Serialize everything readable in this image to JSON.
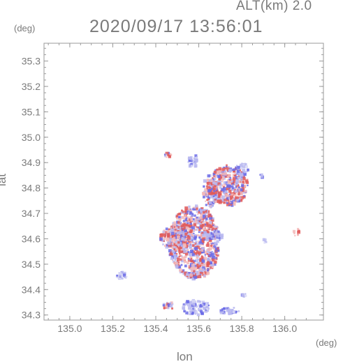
{
  "header": {
    "altitude_label": "ALT(km) 2.0",
    "datetime_label": "2020/09/17 13:56:01"
  },
  "chart_data": {
    "type": "heatmap",
    "title": "2020/09/17 13:56:01",
    "subtitle": "ALT(km) 2.0",
    "xlabel": "lon",
    "ylabel": "lat",
    "x_unit": "(deg)",
    "y_unit": "(deg)",
    "xlim": [
      134.88,
      136.18
    ],
    "ylim": [
      34.28,
      35.37
    ],
    "x_ticks": [
      135.0,
      135.2,
      135.4,
      135.6,
      135.8,
      136.0
    ],
    "x_tick_labels": [
      "135.0",
      "135.2",
      "135.4",
      "135.6",
      "135.8",
      "136.0"
    ],
    "y_ticks": [
      34.3,
      34.4,
      34.5,
      34.6,
      34.7,
      34.8,
      34.9,
      35.0,
      35.1,
      35.2,
      35.3
    ],
    "y_tick_labels": [
      "34.3",
      "34.4",
      "34.5",
      "34.6",
      "34.7",
      "34.8",
      "34.9",
      "35.0",
      "35.1",
      "35.2",
      "35.3"
    ],
    "grid": false,
    "colors": {
      "positive": "#e05a5a",
      "negative": "#6a6ae6",
      "frame": "#9a9a9a",
      "text": "#7a7a7a"
    },
    "echo_regions": [
      {
        "lon": [
          135.46,
          135.7
        ],
        "lat": [
          34.44,
          34.73
        ],
        "dominant": "mixed"
      },
      {
        "lon": [
          135.65,
          135.83
        ],
        "lat": [
          34.73,
          34.89
        ],
        "dominant": "mixed"
      },
      {
        "lon": [
          135.42,
          135.56
        ],
        "lat": [
          34.56,
          34.65
        ],
        "dominant": "mixed"
      },
      {
        "lon": [
          135.55,
          135.6
        ],
        "lat": [
          34.88,
          34.93
        ],
        "dominant": "negative"
      },
      {
        "lon": [
          135.62,
          135.68
        ],
        "lat": [
          34.72,
          34.85
        ],
        "dominant": "mixed"
      },
      {
        "lon": [
          135.77,
          135.83
        ],
        "lat": [
          34.85,
          34.9
        ],
        "dominant": "negative"
      },
      {
        "lon": [
          135.62,
          135.72
        ],
        "lat": [
          34.6,
          34.63
        ],
        "dominant": "negative"
      },
      {
        "lon": [
          135.52,
          135.65
        ],
        "lat": [
          34.3,
          34.36
        ],
        "dominant": "negative"
      },
      {
        "lon": [
          135.7,
          135.79
        ],
        "lat": [
          34.3,
          34.33
        ],
        "dominant": "negative"
      },
      {
        "lon": [
          135.43,
          135.49
        ],
        "lat": [
          34.32,
          34.35
        ],
        "dominant": "mixed"
      },
      {
        "lon": [
          135.21,
          135.27
        ],
        "lat": [
          34.44,
          34.47
        ],
        "dominant": "negative"
      },
      {
        "lon": [
          136.04,
          136.07
        ],
        "lat": [
          34.61,
          34.64
        ],
        "dominant": "positive"
      },
      {
        "lon": [
          135.9,
          135.92
        ],
        "lat": [
          34.58,
          34.6
        ],
        "dominant": "negative"
      },
      {
        "lon": [
          135.8,
          135.82
        ],
        "lat": [
          34.37,
          34.39
        ],
        "dominant": "negative"
      },
      {
        "lon": [
          135.43,
          135.48
        ],
        "lat": [
          34.92,
          34.94
        ],
        "dominant": "mixed"
      },
      {
        "lon": [
          135.88,
          135.9
        ],
        "lat": [
          34.84,
          34.86
        ],
        "dominant": "negative"
      },
      {
        "lon": [
          135.52,
          135.56
        ],
        "lat": [
          34.64,
          34.66
        ],
        "dominant": "positive"
      }
    ]
  }
}
